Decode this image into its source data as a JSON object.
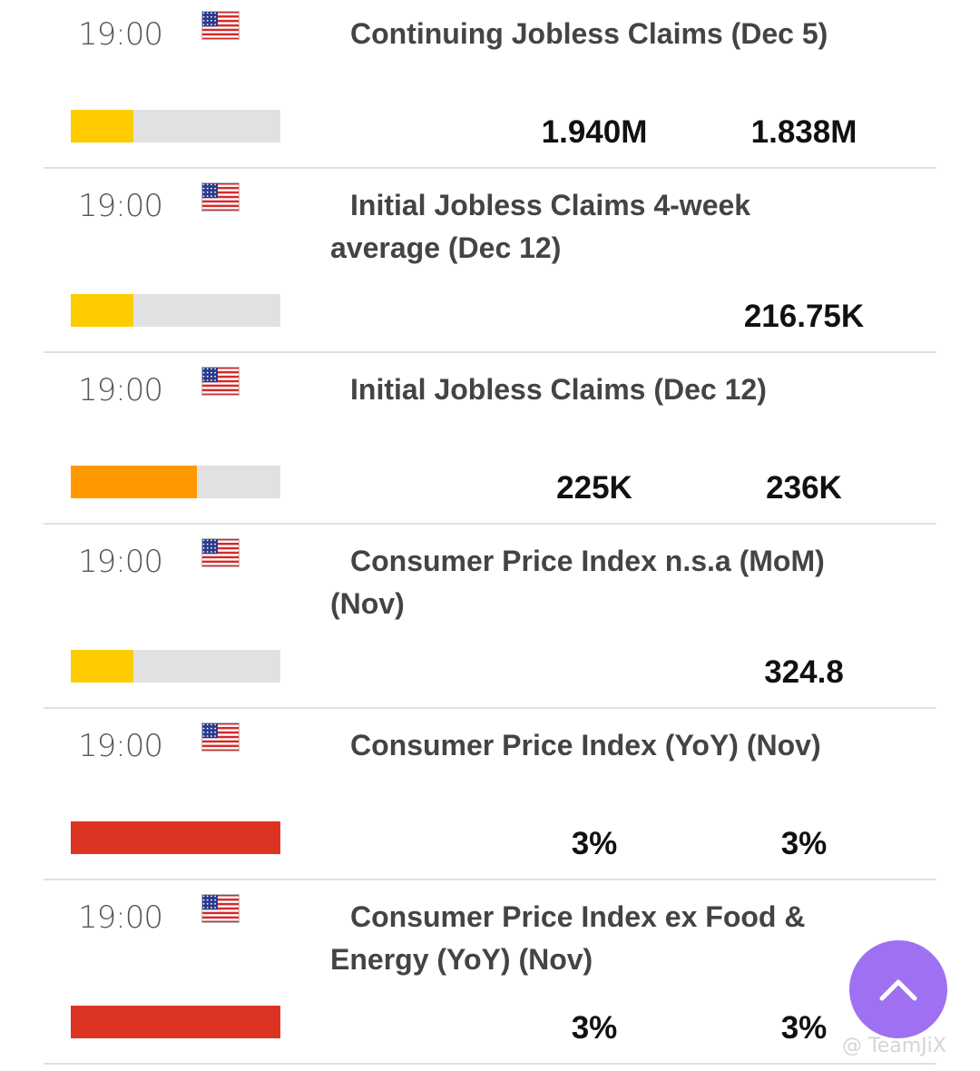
{
  "colors": {
    "bar_track": "#e1e1e1",
    "low": "#ffcc00",
    "medium": "#ff9900",
    "high": "#dd3322",
    "fab": "#a070f2"
  },
  "events": [
    {
      "time": "19:00",
      "country": "United States",
      "flag_icon": "us-flag-icon",
      "title": "Continuing Jobless Claims (Dec 5)",
      "importance": "low",
      "importance_fraction": 0.3,
      "values": [
        "1.940M",
        "1.838M"
      ]
    },
    {
      "time": "19:00",
      "country": "United States",
      "flag_icon": "us-flag-icon",
      "title": "Initial Jobless Claims 4-week average (Dec 12)",
      "importance": "low",
      "importance_fraction": 0.3,
      "values": [
        "",
        "216.75K"
      ]
    },
    {
      "time": "19:00",
      "country": "United States",
      "flag_icon": "us-flag-icon",
      "title": "Initial Jobless Claims (Dec 12)",
      "importance": "medium",
      "importance_fraction": 0.6,
      "values": [
        "225K",
        "236K"
      ]
    },
    {
      "time": "19:00",
      "country": "United States",
      "flag_icon": "us-flag-icon",
      "title": "Consumer Price Index n.s.a (MoM) (Nov)",
      "importance": "low",
      "importance_fraction": 0.3,
      "values": [
        "",
        "324.8"
      ]
    },
    {
      "time": "19:00",
      "country": "United States",
      "flag_icon": "us-flag-icon",
      "title": "Consumer Price Index (YoY) (Nov)",
      "importance": "high",
      "importance_fraction": 1.0,
      "values": [
        "3%",
        "3%"
      ]
    },
    {
      "time": "19:00",
      "country": "United States",
      "flag_icon": "us-flag-icon",
      "title": "Consumer Price Index ex Food & Energy (YoY) (Nov)",
      "importance": "high",
      "importance_fraction": 1.0,
      "values": [
        "3%",
        "3%"
      ]
    }
  ],
  "scroll_top_button": {
    "icon": "chevron-up-icon"
  },
  "watermark": "@ TeamJiX"
}
